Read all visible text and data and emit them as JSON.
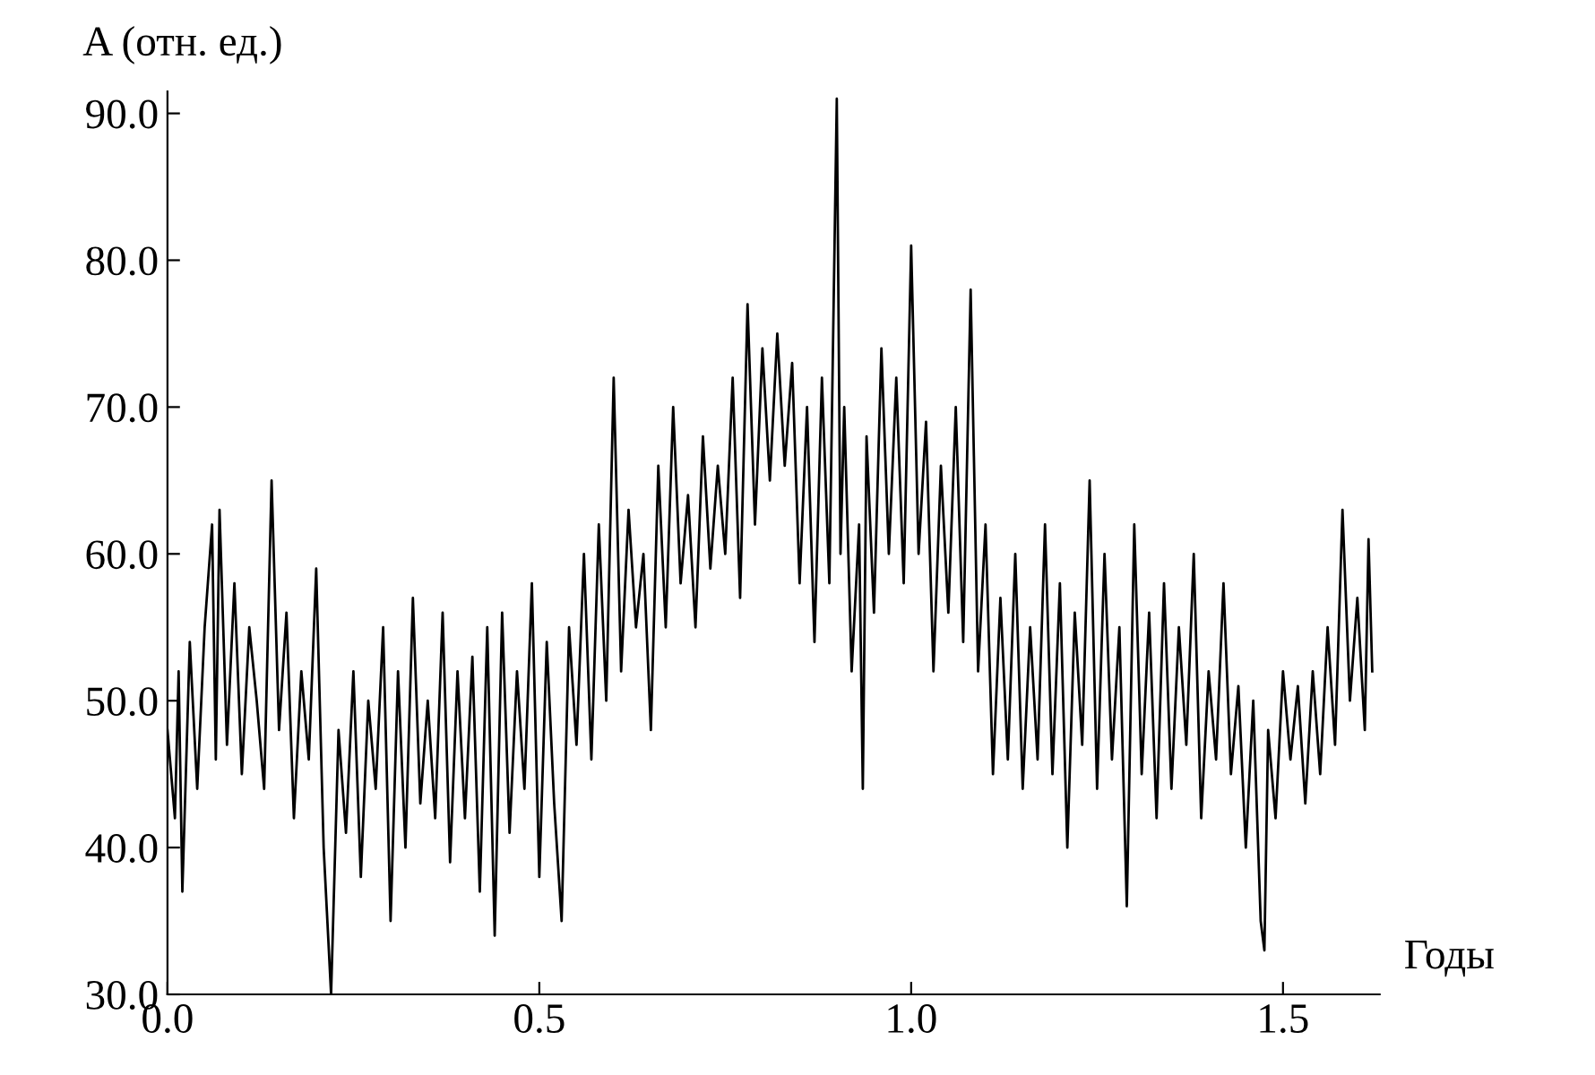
{
  "chart_data": {
    "type": "line",
    "xlabel": "Годы",
    "ylabel": "A (отн. ед.)",
    "xlim": [
      0,
      1.63
    ],
    "ylim": [
      30,
      91.5
    ],
    "xticks": [
      {
        "value": 0,
        "label": "0.0"
      },
      {
        "value": 0.5,
        "label": "0.5"
      },
      {
        "value": 1,
        "label": "1.0"
      },
      {
        "value": 1.5,
        "label": "1.5"
      }
    ],
    "yticks": [
      {
        "value": 30,
        "label": "30.0"
      },
      {
        "value": 40,
        "label": "40.0"
      },
      {
        "value": 50,
        "label": "50.0"
      },
      {
        "value": 60,
        "label": "60.0"
      },
      {
        "value": 70,
        "label": "70.0"
      },
      {
        "value": 80,
        "label": "80.0"
      },
      {
        "value": 90,
        "label": "90.0"
      }
    ],
    "grid": false,
    "legend": false,
    "marker": "none",
    "line_style": "solid",
    "series": [
      {
        "color": "#000000",
        "x": [
          0.0,
          0.01,
          0.015,
          0.02,
          0.03,
          0.04,
          0.05,
          0.06,
          0.065,
          0.07,
          0.08,
          0.09,
          0.1,
          0.11,
          0.12,
          0.13,
          0.14,
          0.15,
          0.16,
          0.17,
          0.18,
          0.19,
          0.2,
          0.21,
          0.22,
          0.23,
          0.24,
          0.25,
          0.26,
          0.27,
          0.28,
          0.29,
          0.3,
          0.31,
          0.32,
          0.33,
          0.34,
          0.35,
          0.36,
          0.37,
          0.38,
          0.39,
          0.4,
          0.41,
          0.42,
          0.43,
          0.44,
          0.45,
          0.46,
          0.47,
          0.48,
          0.49,
          0.5,
          0.51,
          0.52,
          0.53,
          0.54,
          0.55,
          0.56,
          0.57,
          0.58,
          0.59,
          0.6,
          0.61,
          0.62,
          0.63,
          0.64,
          0.65,
          0.66,
          0.67,
          0.68,
          0.69,
          0.7,
          0.71,
          0.72,
          0.73,
          0.74,
          0.75,
          0.76,
          0.77,
          0.78,
          0.79,
          0.8,
          0.81,
          0.82,
          0.83,
          0.84,
          0.85,
          0.86,
          0.87,
          0.88,
          0.89,
          0.9,
          0.905,
          0.91,
          0.92,
          0.93,
          0.935,
          0.94,
          0.95,
          0.96,
          0.97,
          0.98,
          0.99,
          1.0,
          1.01,
          1.02,
          1.03,
          1.04,
          1.05,
          1.06,
          1.07,
          1.08,
          1.09,
          1.1,
          1.11,
          1.12,
          1.13,
          1.14,
          1.15,
          1.16,
          1.17,
          1.18,
          1.19,
          1.2,
          1.21,
          1.22,
          1.23,
          1.24,
          1.25,
          1.26,
          1.27,
          1.28,
          1.29,
          1.3,
          1.31,
          1.32,
          1.33,
          1.34,
          1.35,
          1.36,
          1.37,
          1.38,
          1.39,
          1.4,
          1.41,
          1.42,
          1.43,
          1.44,
          1.45,
          1.46,
          1.47,
          1.475,
          1.48,
          1.49,
          1.5,
          1.51,
          1.52,
          1.53,
          1.54,
          1.55,
          1.56,
          1.57,
          1.58,
          1.59,
          1.6,
          1.61,
          1.615,
          1.62
        ],
        "values": [
          48,
          42,
          52,
          37,
          54,
          44,
          55,
          62,
          46,
          63,
          47,
          58,
          45,
          55,
          50,
          44,
          65,
          48,
          56,
          42,
          52,
          46,
          59,
          40,
          30,
          48,
          41,
          52,
          38,
          50,
          44,
          55,
          35,
          52,
          40,
          57,
          43,
          50,
          42,
          56,
          39,
          52,
          42,
          53,
          37,
          55,
          34,
          56,
          41,
          52,
          44,
          58,
          38,
          54,
          43,
          35,
          55,
          47,
          60,
          46,
          62,
          50,
          72,
          52,
          63,
          55,
          60,
          48,
          66,
          55,
          70,
          58,
          64,
          55,
          68,
          59,
          66,
          60,
          72,
          57,
          77,
          62,
          74,
          65,
          75,
          66,
          73,
          58,
          70,
          54,
          72,
          58,
          91,
          60,
          70,
          52,
          62,
          44,
          68,
          56,
          74,
          60,
          72,
          58,
          81,
          60,
          69,
          52,
          66,
          56,
          70,
          54,
          78,
          52,
          62,
          45,
          57,
          46,
          60,
          44,
          55,
          46,
          62,
          45,
          58,
          40,
          56,
          47,
          65,
          44,
          60,
          46,
          55,
          36,
          62,
          45,
          56,
          42,
          58,
          44,
          55,
          47,
          60,
          42,
          52,
          46,
          58,
          45,
          51,
          40,
          50,
          35,
          33,
          48,
          42,
          52,
          46,
          51,
          43,
          52,
          45,
          55,
          47,
          63,
          50,
          57,
          48,
          61,
          52
        ]
      }
    ]
  }
}
